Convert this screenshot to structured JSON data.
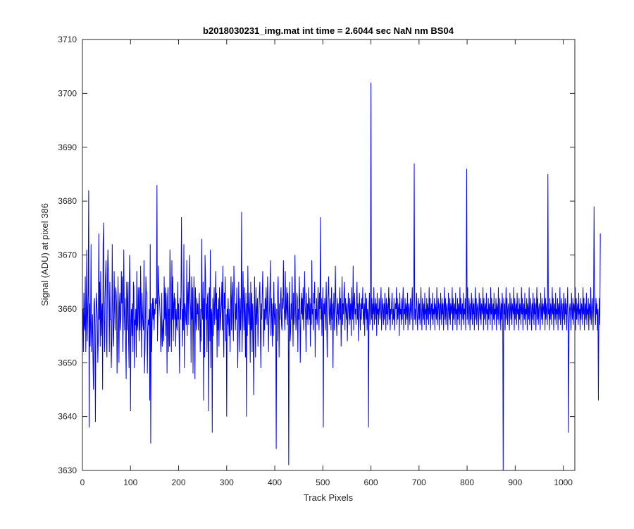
{
  "chart_data": {
    "type": "line",
    "title": "b2018030231_img.mat int time = 2.6044 sec  NaN nm BS04",
    "xlabel": "Track Pixels",
    "ylabel": "Signal (ADU) at pixel 386",
    "xlim": [
      0,
      1024
    ],
    "ylim": [
      3630,
      3710
    ],
    "xticks": [
      0,
      100,
      200,
      300,
      400,
      500,
      600,
      700,
      800,
      900,
      1000
    ],
    "yticks": [
      3630,
      3640,
      3650,
      3660,
      3670,
      3680,
      3690,
      3700,
      3710
    ],
    "grid": false,
    "legend": "none",
    "line_color": "#0000ff",
    "series": [
      {
        "x_start": 1,
        "x_step": 1,
        "values": [
          3660,
          3652,
          3663,
          3657,
          3656,
          3666,
          3652,
          3658,
          3671,
          3654,
          3659,
          3663,
          3682,
          3638,
          3661,
          3653,
          3658,
          3672,
          3652,
          3656,
          3659,
          3650,
          3645,
          3661,
          3662,
          3656,
          3639,
          3657,
          3663,
          3661,
          3658,
          3650,
          3654,
          3674,
          3658,
          3665,
          3653,
          3667,
          3655,
          3659,
          3661,
          3645,
          3672,
          3676,
          3658,
          3652,
          3662,
          3666,
          3669,
          3654,
          3651,
          3665,
          3671,
          3667,
          3663,
          3652,
          3665,
          3658,
          3658,
          3649,
          3654,
          3672,
          3660,
          3655,
          3653,
          3667,
          3660,
          3656,
          3664,
          3663,
          3661,
          3648,
          3655,
          3666,
          3659,
          3650,
          3661,
          3663,
          3656,
          3658,
          3667,
          3661,
          3666,
          3652,
          3659,
          3671,
          3660,
          3656,
          3662,
          3653,
          3647,
          3665,
          3662,
          3656,
          3665,
          3654,
          3649,
          3670,
          3665,
          3641,
          3658,
          3660,
          3655,
          3661,
          3652,
          3665,
          3664,
          3649,
          3658,
          3657,
          3660,
          3651,
          3667,
          3656,
          3657,
          3664,
          3660,
          3654,
          3664,
          3656,
          3668,
          3660,
          3651,
          3663,
          3659,
          3657,
          3656,
          3669,
          3648,
          3652,
          3658,
          3666,
          3663,
          3663,
          3648,
          3656,
          3658,
          3657,
          3660,
          3643,
          3672,
          3635,
          3661,
          3652,
          3658,
          3662,
          3658,
          3662,
          3656,
          3660,
          3659,
          3662,
          3661,
          3661,
          3683,
          3654,
          3659,
          3668,
          3663,
          3662,
          3660,
          3658,
          3652,
          3655,
          3663,
          3653,
          3656,
          3658,
          3654,
          3666,
          3658,
          3664,
          3655,
          3663,
          3659,
          3648,
          3662,
          3664,
          3652,
          3660,
          3653,
          3671,
          3665,
          3657,
          3652,
          3669,
          3658,
          3666,
          3654,
          3661,
          3663,
          3658,
          3662,
          3653,
          3660,
          3657,
          3656,
          3665,
          3658,
          3661,
          3655,
          3648,
          3662,
          3658,
          3663,
          3677,
          3661,
          3653,
          3660,
          3656,
          3672,
          3649,
          3661,
          3660,
          3658,
          3657,
          3669,
          3655,
          3662,
          3665,
          3657,
          3664,
          3670,
          3662,
          3660,
          3650,
          3666,
          3658,
          3664,
          3648,
          3659,
          3666,
          3660,
          3647,
          3664,
          3658,
          3656,
          3662,
          3659,
          3661,
          3656,
          3660,
          3663,
          3658,
          3652,
          3660,
          3654,
          3673,
          3660,
          3658,
          3665,
          3643,
          3662,
          3651,
          3670,
          3666,
          3658,
          3661,
          3652,
          3662,
          3663,
          3641,
          3658,
          3664,
          3654,
          3671,
          3649,
          3660,
          3659,
          3637,
          3662,
          3655,
          3660,
          3664,
          3657,
          3661,
          3667,
          3658,
          3663,
          3651,
          3660,
          3656,
          3662,
          3653,
          3664,
          3661,
          3656,
          3659,
          3661,
          3665,
          3656,
          3668,
          3657,
          3651,
          3663,
          3660,
          3666,
          3654,
          3659,
          3640,
          3660,
          3657,
          3662,
          3658,
          3655,
          3660,
          3652,
          3661,
          3666,
          3656,
          3662,
          3665,
          3658,
          3654,
          3668,
          3663,
          3660,
          3656,
          3661,
          3658,
          3664,
          3659,
          3649,
          3657,
          3665,
          3660,
          3652,
          3662,
          3656,
          3660,
          3678,
          3652,
          3658,
          3667,
          3661,
          3656,
          3664,
          3659,
          3651,
          3663,
          3640,
          3661,
          3655,
          3668,
          3660,
          3657,
          3663,
          3659,
          3650,
          3665,
          3656,
          3663,
          3652,
          3661,
          3658,
          3644,
          3656,
          3666,
          3659,
          3651,
          3664,
          3657,
          3660,
          3662,
          3653,
          3658,
          3660,
          3663,
          3665,
          3656,
          3649,
          3661,
          3658,
          3663,
          3667,
          3659,
          3653,
          3660,
          3656,
          3662,
          3658,
          3664,
          3660,
          3657,
          3666,
          3661,
          3652,
          3658,
          3660,
          3664,
          3669,
          3655,
          3662,
          3659,
          3653,
          3661,
          3655,
          3665,
          3659,
          3657,
          3661,
          3658,
          3634,
          3660,
          3654,
          3663,
          3666,
          3659,
          3651,
          3661,
          3658,
          3662,
          3664,
          3657,
          3656,
          3662,
          3660,
          3669,
          3661,
          3659,
          3656,
          3667,
          3658,
          3660,
          3664,
          3657,
          3663,
          3659,
          3631,
          3660,
          3665,
          3654,
          3656,
          3661,
          3658,
          3666,
          3660,
          3653,
          3663,
          3657,
          3659,
          3670,
          3661,
          3656,
          3658,
          3663,
          3662,
          3652,
          3660,
          3658,
          3666,
          3661,
          3650,
          3657,
          3663,
          3659,
          3662,
          3658,
          3664,
          3656,
          3660,
          3667,
          3661,
          3659,
          3652,
          3663,
          3658,
          3661,
          3657,
          3664,
          3660,
          3658,
          3662,
          3653,
          3661,
          3657,
          3669,
          3659,
          3660,
          3656,
          3663,
          3661,
          3665,
          3651,
          3660,
          3658,
          3662,
          3657,
          3659,
          3664,
          3661,
          3656,
          3663,
          3660,
          3677,
          3658,
          3662,
          3655,
          3660,
          3664,
          3638,
          3661,
          3659,
          3662,
          3656,
          3660,
          3665,
          3658,
          3651,
          3661,
          3663,
          3666,
          3659,
          3657,
          3662,
          3660,
          3656,
          3664,
          3658,
          3661,
          3649,
          3659,
          3663,
          3656,
          3660,
          3668,
          3661,
          3658,
          3655,
          3662,
          3659,
          3661,
          3657,
          3660,
          3664,
          3658,
          3662,
          3653,
          3660,
          3666,
          3657,
          3661,
          3659,
          3663,
          3665,
          3656,
          3662,
          3660,
          3658,
          3661,
          3654,
          3659,
          3663,
          3660,
          3657,
          3662,
          3658,
          3661,
          3655,
          3664,
          3660,
          3658,
          3668,
          3656,
          3661,
          3663,
          3659,
          3660,
          3657,
          3662,
          3665,
          3658,
          3661,
          3654,
          3660,
          3663,
          3659,
          3656,
          3661,
          3658,
          3662,
          3660,
          3664,
          3657,
          3659,
          3661,
          3655,
          3663,
          3660,
          3658,
          3662,
          3656,
          3660,
          3659,
          3638,
          3661,
          3663,
          3657,
          3660,
          3702,
          3658,
          3662,
          3656,
          3661,
          3659,
          3664,
          3657,
          3660,
          3662,
          3658,
          3661,
          3655,
          3663,
          3659,
          3660,
          3657,
          3662,
          3660,
          3658,
          3661,
          3664,
          3656,
          3659,
          3662,
          3660,
          3657,
          3661,
          3658,
          3663,
          3660,
          3656,
          3662,
          3659,
          3661,
          3657,
          3660,
          3664,
          3658,
          3662,
          3656,
          3660,
          3659,
          3661,
          3663,
          3657,
          3660,
          3658,
          3662,
          3656,
          3659,
          3661,
          3660,
          3664,
          3657,
          3662,
          3658,
          3660,
          3661,
          3655,
          3663,
          3659,
          3660,
          3657,
          3662,
          3658,
          3661,
          3664,
          3656,
          3660,
          3659,
          3662,
          3657,
          3661,
          3660,
          3658,
          3663,
          3656,
          3660,
          3661,
          3659,
          3657,
          3662,
          3660,
          3658,
          3661,
          3664,
          3656,
          3659,
          3662,
          3687,
          3658,
          3660,
          3657,
          3661,
          3663,
          3659,
          3656,
          3660,
          3662,
          3658,
          3661,
          3657,
          3660,
          3664,
          3659,
          3656,
          3662,
          3660,
          3658,
          3661,
          3657,
          3663,
          3659,
          3660,
          3656,
          3662,
          3658,
          3661,
          3660,
          3657,
          3664,
          3659,
          3662,
          3656,
          3660,
          3661,
          3658,
          3663,
          3657,
          3660,
          3659,
          3662,
          3656,
          3661,
          3660,
          3658,
          3664,
          3657,
          3659,
          3662,
          3660,
          3656,
          3661,
          3658,
          3663,
          3660,
          3657,
          3662,
          3659,
          3661,
          3656,
          3660,
          3664,
          3658,
          3662,
          3657,
          3660,
          3661,
          3659,
          3656,
          3663,
          3660,
          3658,
          3662,
          3657,
          3661,
          3660,
          3659,
          3664,
          3656,
          3662,
          3658,
          3660,
          3661,
          3657,
          3663,
          3659,
          3660,
          3656,
          3662,
          3658,
          3661,
          3660,
          3657,
          3664,
          3659,
          3662,
          3656,
          3660,
          3661,
          3658,
          3663,
          3657,
          3660,
          3659,
          3662,
          3656,
          3661,
          3686,
          3658,
          3664,
          3657,
          3659,
          3662,
          3660,
          3656,
          3661,
          3658,
          3663,
          3660,
          3657,
          3662,
          3659,
          3661,
          3656,
          3660,
          3664,
          3658,
          3662,
          3657,
          3660,
          3661,
          3659,
          3656,
          3663,
          3660,
          3658,
          3662,
          3657,
          3661,
          3660,
          3659,
          3664,
          3656,
          3662,
          3658,
          3660,
          3661,
          3657,
          3663,
          3659,
          3660,
          3656,
          3662,
          3658,
          3661,
          3660,
          3657,
          3664,
          3659,
          3662,
          3656,
          3660,
          3661,
          3658,
          3663,
          3657,
          3660,
          3659,
          3662,
          3656,
          3661,
          3660,
          3658,
          3664,
          3657,
          3659,
          3662,
          3660,
          3656,
          3661,
          3658,
          3663,
          3660,
          3630,
          3662,
          3659,
          3661,
          3656,
          3660,
          3664,
          3658,
          3662,
          3657,
          3660,
          3661,
          3659,
          3656,
          3663,
          3660,
          3658,
          3662,
          3657,
          3661,
          3660,
          3659,
          3664,
          3656,
          3662,
          3658,
          3660,
          3661,
          3657,
          3663,
          3659,
          3660,
          3656,
          3662,
          3658,
          3661,
          3660,
          3657,
          3664,
          3659,
          3662,
          3656,
          3660,
          3661,
          3658,
          3663,
          3657,
          3660,
          3659,
          3662,
          3656,
          3661,
          3660,
          3658,
          3664,
          3657,
          3659,
          3662,
          3660,
          3656,
          3661,
          3658,
          3663,
          3660,
          3657,
          3662,
          3659,
          3661,
          3656,
          3660,
          3664,
          3658,
          3662,
          3657,
          3660,
          3661,
          3659,
          3656,
          3663,
          3660,
          3658,
          3662,
          3657,
          3661,
          3660,
          3659,
          3664,
          3656,
          3662,
          3658,
          3660,
          3661,
          3657,
          3685,
          3659,
          3660,
          3656,
          3662,
          3658,
          3661,
          3660,
          3657,
          3664,
          3659,
          3662,
          3656,
          3660,
          3661,
          3658,
          3663,
          3657,
          3660,
          3659,
          3662,
          3656,
          3661,
          3660,
          3658,
          3664,
          3657,
          3659,
          3662,
          3660,
          3656,
          3661,
          3658,
          3663,
          3660,
          3657,
          3662,
          3659,
          3661,
          3656,
          3660,
          3664,
          3658,
          3637,
          3657,
          3660,
          3661,
          3659,
          3656,
          3663,
          3660,
          3658,
          3662,
          3657,
          3661,
          3660,
          3659,
          3664,
          3656,
          3662,
          3658,
          3660,
          3661,
          3657,
          3663,
          3659,
          3660,
          3656,
          3662,
          3658,
          3661,
          3660,
          3657,
          3664,
          3659,
          3662,
          3656,
          3660,
          3661,
          3658,
          3663,
          3657,
          3660,
          3659,
          3662,
          3656,
          3661,
          3660,
          3658,
          3664,
          3657,
          3659,
          3662,
          3660,
          3656,
          3661,
          3679,
          3663,
          3660,
          3657,
          3662,
          3659,
          3661,
          3656,
          3660,
          3643,
          3658,
          3662,
          3657,
          3674
        ]
      }
    ]
  }
}
